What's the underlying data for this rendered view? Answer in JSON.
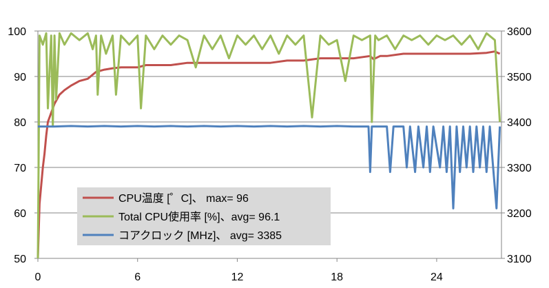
{
  "chart_data": {
    "type": "line",
    "title": "",
    "xlabel": "",
    "ylabel_left": "",
    "ylabel_right": "",
    "x_range": [
      0,
      27.9
    ],
    "x_ticks": [
      0,
      6,
      12,
      18,
      24
    ],
    "y_left_range": [
      50,
      100
    ],
    "y_left_ticks": [
      50,
      60,
      70,
      80,
      90,
      100
    ],
    "y_right_range": [
      3100,
      3600
    ],
    "y_right_ticks": [
      3100,
      3200,
      3300,
      3400,
      3500,
      3600
    ],
    "grid": "horizontal",
    "legend_position": "bottom-left",
    "series": [
      {
        "name": "CPU温度 [゜C]、 max= 96",
        "axis": "left",
        "color": "#C0504D",
        "points": [
          [
            0,
            50
          ],
          [
            0.1,
            62
          ],
          [
            0.2,
            66
          ],
          [
            0.3,
            70
          ],
          [
            0.4,
            73
          ],
          [
            0.5,
            77
          ],
          [
            0.6,
            80
          ],
          [
            0.8,
            82
          ],
          [
            1.0,
            84
          ],
          [
            1.3,
            86
          ],
          [
            1.6,
            87
          ],
          [
            2.0,
            88
          ],
          [
            2.5,
            89
          ],
          [
            3.0,
            89.5
          ],
          [
            3.5,
            91
          ],
          [
            4.0,
            91.5
          ],
          [
            4.5,
            91.8
          ],
          [
            5.0,
            92
          ],
          [
            5.5,
            92
          ],
          [
            6.0,
            92
          ],
          [
            6.5,
            92.5
          ],
          [
            7.0,
            92.5
          ],
          [
            8.0,
            92.5
          ],
          [
            9.0,
            93
          ],
          [
            10.0,
            93
          ],
          [
            11.0,
            93
          ],
          [
            12.0,
            93
          ],
          [
            13.0,
            93
          ],
          [
            14.0,
            93
          ],
          [
            15.0,
            93.5
          ],
          [
            16.0,
            93.5
          ],
          [
            17.0,
            94
          ],
          [
            18.0,
            94
          ],
          [
            19.0,
            94
          ],
          [
            20.0,
            94.5
          ],
          [
            20.2,
            93.8
          ],
          [
            20.6,
            94.5
          ],
          [
            21.0,
            94.5
          ],
          [
            22.0,
            95
          ],
          [
            23.0,
            95
          ],
          [
            24.0,
            95
          ],
          [
            25.0,
            95
          ],
          [
            26.0,
            95
          ],
          [
            27.0,
            95.2
          ],
          [
            27.5,
            95.5
          ],
          [
            27.8,
            95
          ]
        ]
      },
      {
        "name": "Total CPU使用率 [%]、avg= 96.1",
        "axis": "left",
        "color": "#9BBB59",
        "points": [
          [
            0,
            50
          ],
          [
            0.1,
            99
          ],
          [
            0.3,
            97
          ],
          [
            0.5,
            99.5
          ],
          [
            0.6,
            83
          ],
          [
            0.8,
            99
          ],
          [
            0.9,
            79
          ],
          [
            1.0,
            99
          ],
          [
            1.1,
            85
          ],
          [
            1.3,
            99.5
          ],
          [
            1.6,
            97
          ],
          [
            2.0,
            99.5
          ],
          [
            2.5,
            98
          ],
          [
            3.0,
            99.5
          ],
          [
            3.3,
            96
          ],
          [
            3.5,
            99
          ],
          [
            3.6,
            86
          ],
          [
            3.8,
            99
          ],
          [
            4.1,
            95
          ],
          [
            4.5,
            99
          ],
          [
            4.7,
            86
          ],
          [
            5.0,
            99
          ],
          [
            5.5,
            97
          ],
          [
            6.0,
            99
          ],
          [
            6.2,
            83
          ],
          [
            6.5,
            99
          ],
          [
            7.0,
            96
          ],
          [
            7.5,
            99
          ],
          [
            8.0,
            97
          ],
          [
            8.5,
            99
          ],
          [
            9.0,
            98
          ],
          [
            9.5,
            92
          ],
          [
            10.0,
            99
          ],
          [
            10.5,
            96
          ],
          [
            11.0,
            99
          ],
          [
            11.5,
            94
          ],
          [
            12.0,
            99
          ],
          [
            12.5,
            97
          ],
          [
            13.0,
            99
          ],
          [
            13.5,
            96
          ],
          [
            14.0,
            99
          ],
          [
            14.5,
            95
          ],
          [
            15.0,
            99
          ],
          [
            15.5,
            97
          ],
          [
            16.0,
            99
          ],
          [
            16.5,
            81
          ],
          [
            17.0,
            99
          ],
          [
            17.5,
            97
          ],
          [
            18.0,
            98
          ],
          [
            18.5,
            89
          ],
          [
            19.0,
            99
          ],
          [
            19.5,
            98
          ],
          [
            20.0,
            99
          ],
          [
            20.1,
            80
          ],
          [
            20.3,
            99
          ],
          [
            20.5,
            98
          ],
          [
            21.0,
            99
          ],
          [
            21.5,
            96
          ],
          [
            22.0,
            99
          ],
          [
            22.5,
            98
          ],
          [
            23.0,
            99
          ],
          [
            23.5,
            97
          ],
          [
            24.0,
            99
          ],
          [
            24.5,
            98
          ],
          [
            25.0,
            99
          ],
          [
            25.5,
            97
          ],
          [
            26.0,
            99
          ],
          [
            26.5,
            96
          ],
          [
            27.0,
            99.5
          ],
          [
            27.5,
            98
          ],
          [
            27.8,
            80
          ]
        ]
      },
      {
        "name": "コアクロック [MHz]、 avg= 3385",
        "axis": "right",
        "color": "#4F81BD",
        "points": [
          [
            0,
            3390
          ],
          [
            0.5,
            3390
          ],
          [
            1,
            3390
          ],
          [
            2,
            3391
          ],
          [
            3,
            3390
          ],
          [
            4,
            3391
          ],
          [
            5,
            3390
          ],
          [
            6,
            3391
          ],
          [
            7,
            3390
          ],
          [
            8,
            3391
          ],
          [
            9,
            3390
          ],
          [
            10,
            3391
          ],
          [
            11,
            3390
          ],
          [
            12,
            3391
          ],
          [
            13,
            3390
          ],
          [
            14,
            3391
          ],
          [
            15,
            3390
          ],
          [
            16,
            3391
          ],
          [
            17,
            3390
          ],
          [
            18,
            3391
          ],
          [
            19,
            3390
          ],
          [
            19.9,
            3390
          ],
          [
            20,
            3290
          ],
          [
            20.1,
            3390
          ],
          [
            21,
            3390
          ],
          [
            21.2,
            3290
          ],
          [
            21.4,
            3390
          ],
          [
            22,
            3390
          ],
          [
            22.2,
            3300
          ],
          [
            22.4,
            3390
          ],
          [
            22.7,
            3290
          ],
          [
            22.9,
            3390
          ],
          [
            23.2,
            3300
          ],
          [
            23.4,
            3390
          ],
          [
            23.6,
            3290
          ],
          [
            23.8,
            3390
          ],
          [
            24.2,
            3300
          ],
          [
            24.4,
            3390
          ],
          [
            24.6,
            3290
          ],
          [
            24.8,
            3390
          ],
          [
            25.0,
            3210
          ],
          [
            25.2,
            3390
          ],
          [
            25.4,
            3290
          ],
          [
            25.6,
            3390
          ],
          [
            25.8,
            3300
          ],
          [
            26.0,
            3390
          ],
          [
            26.2,
            3290
          ],
          [
            26.4,
            3390
          ],
          [
            26.6,
            3300
          ],
          [
            26.8,
            3390
          ],
          [
            27.0,
            3290
          ],
          [
            27.2,
            3390
          ],
          [
            27.4,
            3300
          ],
          [
            27.6,
            3210
          ],
          [
            27.8,
            3390
          ]
        ]
      }
    ]
  }
}
